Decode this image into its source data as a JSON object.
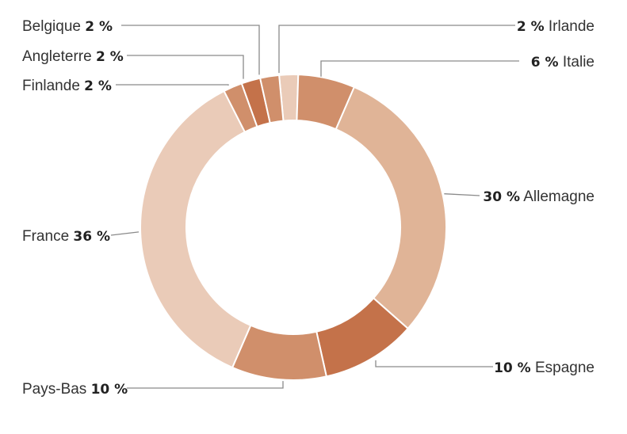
{
  "chart_data": {
    "type": "pie",
    "style": "donut",
    "categories": [
      "Irlande",
      "Italie",
      "Allemagne",
      "Espagne",
      "Pays-Bas",
      "France",
      "Finlande",
      "Angleterre",
      "Belgique"
    ],
    "values": [
      2,
      6,
      30,
      10,
      10,
      36,
      2,
      2,
      2
    ],
    "value_labels": [
      "2 %",
      "6 %",
      "30 %",
      "10 %",
      "10 %",
      "36 %",
      "2 %",
      "2 %",
      "2 %"
    ],
    "colors": [
      "#EACBB8",
      "#D08F6B",
      "#E0B497",
      "#C4724A",
      "#D08F6B",
      "#EACBB8",
      "#D08F6B",
      "#C4724A",
      "#D08F6B"
    ],
    "title": "",
    "legend": "none"
  }
}
